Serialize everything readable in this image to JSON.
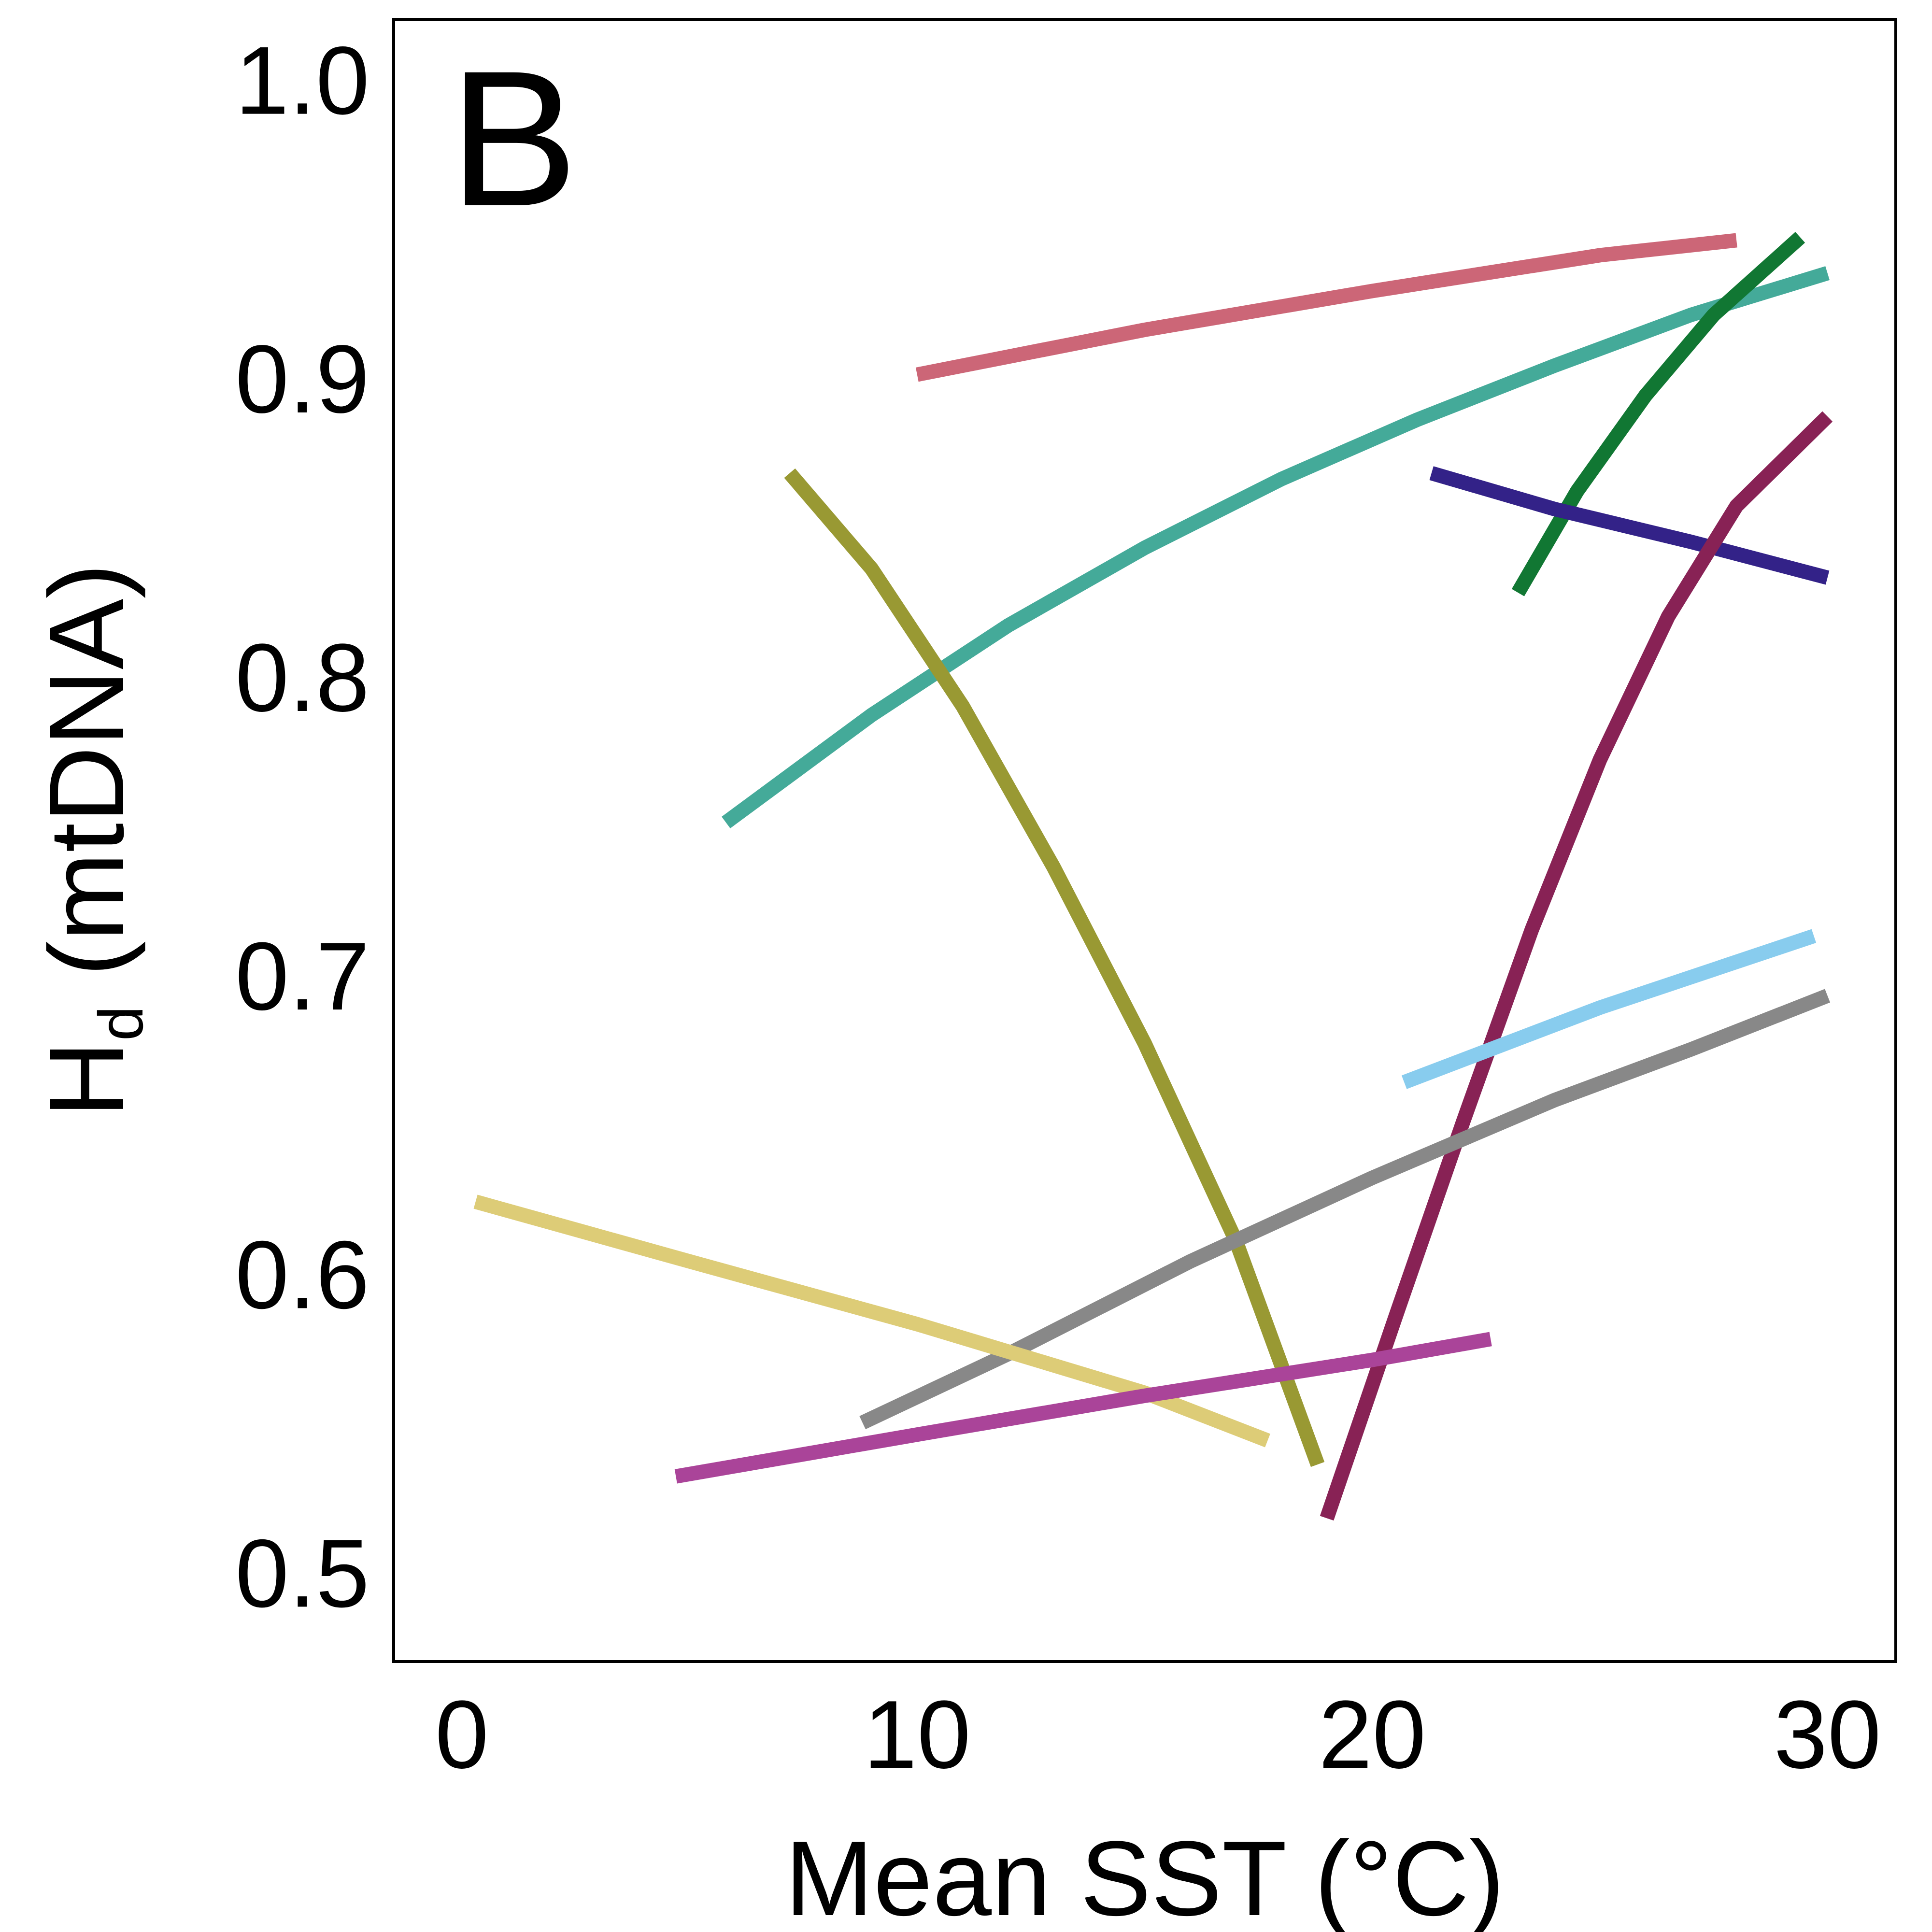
{
  "chart_data": {
    "type": "line",
    "panel_label": "B",
    "xlabel": "Mean SST (°C)",
    "ylabel_main": "H",
    "ylabel_sub": "d",
    "ylabel_rest": " (mtDNA)",
    "xlim": [
      -1.5,
      31.5
    ],
    "ylim": [
      0.47,
      1.02
    ],
    "xticks": [
      0,
      10,
      20,
      30
    ],
    "yticks": [
      0.5,
      0.6,
      0.7,
      0.8,
      0.9,
      1.0
    ],
    "xtick_labels": [
      "0",
      "10",
      "20",
      "30"
    ],
    "ytick_labels": [
      "0.5",
      "0.6",
      "0.7",
      "0.8",
      "0.9",
      "1.0"
    ],
    "grid": false,
    "series": [
      {
        "color": "#CC6677",
        "x": [
          10,
          15,
          20,
          25,
          28
        ],
        "y": [
          0.901,
          0.916,
          0.929,
          0.941,
          0.946
        ]
      },
      {
        "color": "#44AA99",
        "x": [
          5.8,
          9,
          12,
          15,
          18,
          21,
          24,
          27,
          30
        ],
        "y": [
          0.751,
          0.787,
          0.817,
          0.843,
          0.866,
          0.886,
          0.904,
          0.921,
          0.935
        ]
      },
      {
        "color": "#117733",
        "x": [
          23.2,
          24.5,
          26,
          27.5,
          29.4
        ],
        "y": [
          0.828,
          0.862,
          0.894,
          0.921,
          0.947
        ]
      },
      {
        "color": "#332288",
        "x": [
          21.3,
          24,
          27,
          30
        ],
        "y": [
          0.868,
          0.856,
          0.845,
          0.833
        ]
      },
      {
        "color": "#882255",
        "x": [
          19,
          20.5,
          22,
          23.5,
          25,
          26.5,
          28,
          30
        ],
        "y": [
          0.518,
          0.585,
          0.651,
          0.715,
          0.772,
          0.82,
          0.857,
          0.887
        ]
      },
      {
        "color": "#999933",
        "x": [
          7.2,
          9,
          11,
          13,
          15,
          17,
          18.8
        ],
        "y": [
          0.868,
          0.836,
          0.79,
          0.736,
          0.677,
          0.611,
          0.536
        ]
      },
      {
        "color": "#88CCEE",
        "x": [
          20.7,
          25,
          29.7
        ],
        "y": [
          0.664,
          0.689,
          0.713
        ]
      },
      {
        "color": "#888888",
        "x": [
          8.8,
          12,
          16,
          20,
          24,
          27,
          30
        ],
        "y": [
          0.55,
          0.573,
          0.604,
          0.632,
          0.658,
          0.675,
          0.693
        ]
      },
      {
        "color": "#DDCC77",
        "x": [
          0.3,
          5,
          10,
          15,
          17.7
        ],
        "y": [
          0.624,
          0.604,
          0.583,
          0.56,
          0.544
        ]
      },
      {
        "color": "#AA4499",
        "x": [
          4.7,
          10,
          15,
          20,
          22.6
        ],
        "y": [
          0.532,
          0.546,
          0.559,
          0.571,
          0.578
        ]
      }
    ]
  }
}
